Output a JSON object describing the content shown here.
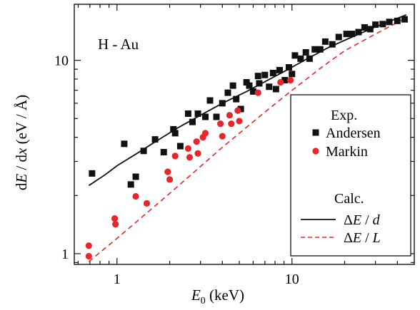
{
  "chart_data": {
    "type": "scatter",
    "title": "",
    "annotation": "H - Au",
    "xlabel": {
      "main": "E",
      "sub": "0",
      "unit": " (keV)"
    },
    "ylabel": {
      "d1": "d",
      "E": "E",
      "slash1": " / d",
      "x": "x",
      "unit": " (eV / Å)"
    },
    "xscale": "log",
    "yscale": "log",
    "xlim": [
      0.57,
      50
    ],
    "ylim": [
      0.88,
      19.5
    ],
    "x_ticks": [
      {
        "value": 1,
        "label": "1"
      },
      {
        "value": 10,
        "label": "10"
      }
    ],
    "y_ticks": [
      {
        "value": 1,
        "label": "1"
      },
      {
        "value": 10,
        "label": "10"
      }
    ],
    "grid": false,
    "legend": {
      "position": "right",
      "exp_heading": "Exp.",
      "calc_heading": "Calc.",
      "entries": [
        {
          "label": "Andersen",
          "marker": "square",
          "color": "#111111"
        },
        {
          "label": "Markin",
          "marker": "circle",
          "color": "#e8262a"
        },
        {
          "label_delta": "Δ",
          "label_var": "E",
          "label_rest": " / ",
          "label_den": "d",
          "line": "solid",
          "color": "#111111"
        },
        {
          "label_delta": "Δ",
          "label_var": "E",
          "label_rest": " / ",
          "label_den": "L",
          "line": "dashed",
          "color": "#e8262a"
        }
      ]
    },
    "series": [
      {
        "name": "Andersen",
        "marker": "square",
        "color": "#111111",
        "x": [
          0.72,
          1.1,
          1.2,
          1.28,
          1.42,
          1.65,
          1.85,
          2.1,
          2.15,
          2.3,
          2.55,
          2.7,
          2.9,
          3.2,
          3.4,
          3.7,
          4.0,
          4.3,
          4.6,
          4.8,
          5.1,
          5.5,
          5.7,
          6.0,
          6.4,
          6.5,
          7.0,
          7.4,
          7.8,
          8.1,
          8.5,
          9.1,
          9.6,
          10.0,
          10.4,
          11.2,
          12.0,
          12.6,
          13.5,
          14.5,
          15.5,
          17.0,
          18.5,
          20.5,
          22.0,
          24.0,
          26.0,
          28.0,
          30.0,
          33.0,
          36.0,
          40.0,
          44.0
        ],
        "y": [
          2.6,
          3.7,
          2.28,
          2.5,
          3.4,
          3.9,
          3.35,
          4.4,
          4.2,
          3.6,
          5.3,
          4.8,
          5.3,
          5.1,
          6.2,
          5.1,
          6.0,
          6.8,
          7.4,
          6.3,
          5.6,
          7.7,
          7.4,
          6.9,
          8.3,
          7.6,
          8.4,
          7.3,
          8.6,
          7.1,
          8.9,
          7.9,
          9.2,
          8.5,
          10.6,
          10.2,
          11.0,
          10.2,
          11.4,
          11.4,
          12.5,
          12.1,
          13.2,
          13.7,
          13.7,
          14.0,
          14.8,
          14.5,
          15.3,
          15.4,
          15.8,
          16.0,
          16.3
        ]
      },
      {
        "name": "Markin",
        "marker": "circle",
        "color": "#e8262a",
        "x": [
          0.69,
          0.69,
          0.97,
          0.98,
          1.28,
          1.48,
          1.95,
          2.0,
          2.15,
          2.55,
          2.6,
          2.85,
          2.9,
          3.1,
          3.2,
          3.9,
          4.0,
          4.4,
          4.5,
          4.9,
          5.0,
          6.4,
          8.6,
          9.8
        ],
        "y": [
          1.1,
          0.97,
          1.52,
          1.42,
          1.98,
          1.82,
          2.65,
          2.42,
          3.2,
          3.5,
          3.15,
          3.8,
          3.3,
          4.0,
          4.2,
          4.7,
          4.05,
          5.2,
          4.7,
          5.5,
          4.85,
          6.8,
          7.7,
          7.9
        ]
      },
      {
        "name": "ΔE / d",
        "line": "solid",
        "color": "#111111",
        "x": [
          0.69,
          0.85,
          1.0,
          1.3,
          1.7,
          2.2,
          3.0,
          4.0,
          5.5,
          7.0,
          9.0,
          12.0,
          16.0,
          22.0,
          30.0,
          40.0,
          45.0
        ],
        "y": [
          2.25,
          2.55,
          2.85,
          3.3,
          3.85,
          4.45,
          5.2,
          6.0,
          6.9,
          7.75,
          8.75,
          10.1,
          11.6,
          13.2,
          14.9,
          16.5,
          17.2
        ]
      },
      {
        "name": "ΔE / L",
        "line": "dashed",
        "color": "#e8262a",
        "x": [
          0.69,
          1.0,
          2.0,
          4.0,
          7.0,
          10.0,
          15.0,
          20.0,
          30.0,
          45.0
        ],
        "y": [
          0.91,
          1.2,
          2.05,
          3.55,
          5.4,
          7.0,
          9.3,
          11.2,
          13.7,
          16.6
        ]
      }
    ]
  }
}
